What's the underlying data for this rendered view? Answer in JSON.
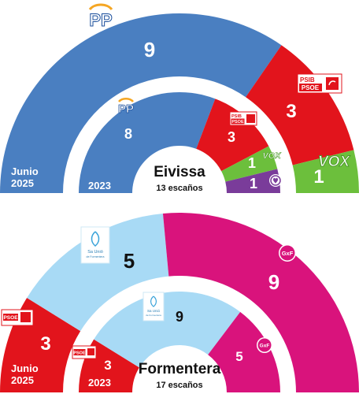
{
  "chart_data": [
    {
      "type": "pie",
      "variant": "semicircle-parliament",
      "region": "Eivissa",
      "seats_label": "13 escaños",
      "rings": [
        {
          "label": "Junio 2025",
          "slices": [
            {
              "party": "PP",
              "seats": 9,
              "color": "#4a7fc1",
              "logo": "pp-logo"
            },
            {
              "party": "PSIB PSOE",
              "seats": 3,
              "color": "#e2141c",
              "logo": "psoe-logo"
            },
            {
              "party": "VOX",
              "seats": 1,
              "color": "#6cbf3c",
              "logo": "vox-logo"
            }
          ]
        },
        {
          "label": "2023",
          "slices": [
            {
              "party": "PP",
              "seats": 8,
              "color": "#4a7fc1",
              "logo": "pp-logo"
            },
            {
              "party": "PSIB PSOE",
              "seats": 3,
              "color": "#e2141c",
              "logo": "psoe-logo"
            },
            {
              "party": "VOX",
              "seats": 1,
              "color": "#6cbf3c",
              "logo": "vox-logo"
            },
            {
              "party": "Unidas Podemos",
              "seats": 1,
              "color": "#7a3c9a",
              "logo": "podemos-logo"
            }
          ]
        }
      ]
    },
    {
      "type": "pie",
      "variant": "semicircle-parliament",
      "region": "Formentera",
      "seats_label": "17 escaños",
      "rings": [
        {
          "label": "Junio 2025",
          "slices": [
            {
              "party": "PSOE",
              "seats": 3,
              "color": "#e2141c",
              "logo": "psoe-logo"
            },
            {
              "party": "Sa Unió de Formentera",
              "seats": 5,
              "color": "#a8daf5",
              "logo": "sa-unio-logo"
            },
            {
              "party": "GxF",
              "seats": 9,
              "color": "#d9137c",
              "logo": "gxf-logo"
            }
          ]
        },
        {
          "label": "2023",
          "slices": [
            {
              "party": "PSOE",
              "seats": 3,
              "color": "#e2141c",
              "logo": "psoe-logo"
            },
            {
              "party": "Sa Unió de Formentera",
              "seats": 9,
              "color": "#a8daf5",
              "logo": "sa-unio-logo"
            },
            {
              "party": "GxF",
              "seats": 5,
              "color": "#d9137c",
              "logo": "gxf-logo"
            }
          ]
        }
      ]
    }
  ],
  "logo_text": {
    "pp": "PP",
    "psib": "PSIB",
    "psoe": "PSOE",
    "vox": "VOX",
    "gxf": "GxF",
    "sa_unio": "Sa Unió",
    "sa_unio_sub": "de Formentera"
  }
}
